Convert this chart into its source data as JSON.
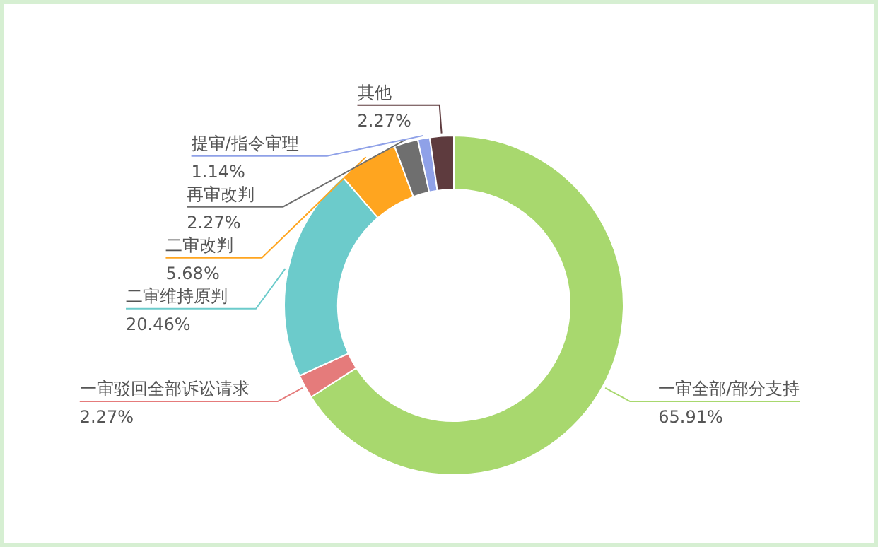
{
  "chart_data": {
    "type": "donut",
    "categories": [
      "一审全部/部分支持",
      "一审驳回全部诉讼请求",
      "二审维持原判",
      "二审改判",
      "再审改判",
      "提审/指令审理",
      "其他"
    ],
    "values": [
      65.91,
      2.27,
      20.46,
      5.68,
      2.27,
      1.14,
      2.27
    ],
    "colors": [
      "#a8d86e",
      "#e57b7b",
      "#6ccbcb",
      "#ffa51f",
      "#6f6f6f",
      "#8fa1e8",
      "#5e3b3e"
    ],
    "value_labels": [
      "65.91%",
      "2.27%",
      "20.46%",
      "5.68%",
      "2.27%",
      "1.14%",
      "2.27%"
    ]
  }
}
